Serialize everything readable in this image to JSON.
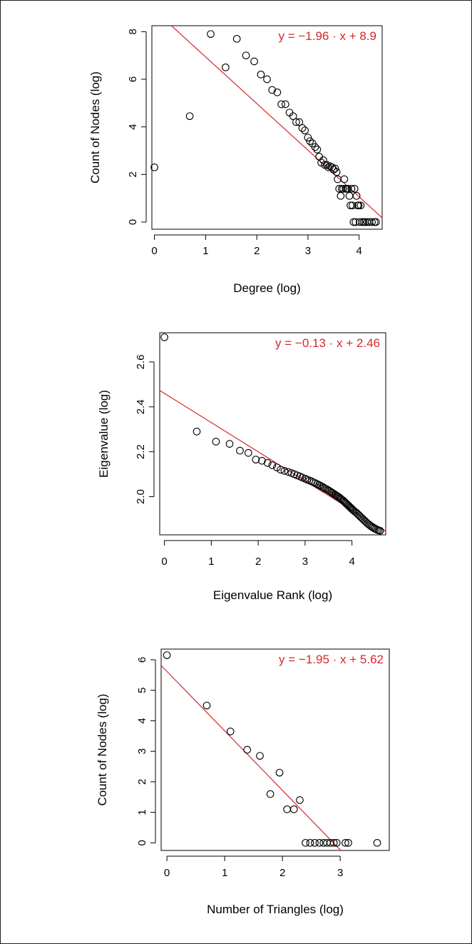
{
  "colors": {
    "points": "#000000",
    "fit_line": "#d62728",
    "equation": "#d62728"
  },
  "chart_data": [
    {
      "type": "scatter",
      "xlabel": "Degree (log)",
      "ylabel": "Count of Nodes (log)",
      "xlim": [
        -0.05,
        4.45
      ],
      "ylim": [
        -0.3,
        8.25
      ],
      "xticks": [
        "0",
        "1",
        "2",
        "3",
        "4"
      ],
      "yticks": [
        "0",
        "2",
        "4",
        "6",
        "8"
      ],
      "equation": "y = −1.96 · x + 8.9",
      "fit": {
        "slope": -1.96,
        "intercept": 8.9
      },
      "points": [
        [
          0,
          2.3
        ],
        [
          0.69,
          4.45
        ],
        [
          1.1,
          7.9
        ],
        [
          1.39,
          6.5
        ],
        [
          1.61,
          7.7
        ],
        [
          1.79,
          7.0
        ],
        [
          1.95,
          6.75
        ],
        [
          2.08,
          6.2
        ],
        [
          2.2,
          6.0
        ],
        [
          2.3,
          5.55
        ],
        [
          2.4,
          5.45
        ],
        [
          2.48,
          4.95
        ],
        [
          2.56,
          4.95
        ],
        [
          2.64,
          4.6
        ],
        [
          2.71,
          4.45
        ],
        [
          2.77,
          4.2
        ],
        [
          2.83,
          4.2
        ],
        [
          2.89,
          3.95
        ],
        [
          2.94,
          3.85
        ],
        [
          3.0,
          3.55
        ],
        [
          3.04,
          3.4
        ],
        [
          3.09,
          3.3
        ],
        [
          3.14,
          3.15
        ],
        [
          3.18,
          3.05
        ],
        [
          3.22,
          2.75
        ],
        [
          3.26,
          2.5
        ],
        [
          3.3,
          2.6
        ],
        [
          3.33,
          2.4
        ],
        [
          3.37,
          2.4
        ],
        [
          3.4,
          2.3
        ],
        [
          3.43,
          2.35
        ],
        [
          3.47,
          2.3
        ],
        [
          3.5,
          2.2
        ],
        [
          3.53,
          2.25
        ],
        [
          3.56,
          2.1
        ],
        [
          3.58,
          1.8
        ],
        [
          3.61,
          1.4
        ],
        [
          3.64,
          1.1
        ],
        [
          3.66,
          1.4
        ],
        [
          3.69,
          1.4
        ],
        [
          3.71,
          1.8
        ],
        [
          3.74,
          1.4
        ],
        [
          3.76,
          1.4
        ],
        [
          3.78,
          1.4
        ],
        [
          3.81,
          1.1
        ],
        [
          3.83,
          0.7
        ],
        [
          3.85,
          1.4
        ],
        [
          3.87,
          0.7
        ],
        [
          3.89,
          0.0
        ],
        [
          3.91,
          1.4
        ],
        [
          3.93,
          0.0
        ],
        [
          3.95,
          1.1
        ],
        [
          3.97,
          0.7
        ],
        [
          3.99,
          0.7
        ],
        [
          4.01,
          0.0
        ],
        [
          4.03,
          0.7
        ],
        [
          4.06,
          0.0
        ],
        [
          4.09,
          0.0
        ],
        [
          4.12,
          0.0
        ],
        [
          4.16,
          0.0
        ],
        [
          4.2,
          0.0
        ],
        [
          4.25,
          0.0
        ],
        [
          4.3,
          0.0
        ],
        [
          4.33,
          0.0
        ]
      ]
    },
    {
      "type": "scatter",
      "xlabel": "Eigenvalue Rank (log)",
      "ylabel": "Eigenvalue (log)",
      "xlim": [
        -0.1,
        4.72
      ],
      "ylim": [
        1.83,
        2.73
      ],
      "xticks": [
        "0",
        "1",
        "2",
        "3",
        "4"
      ],
      "yticks": [
        "2.0",
        "2.2",
        "2.4",
        "2.6"
      ],
      "equation": "y = −0.13 · x + 2.46",
      "fit": {
        "slope": -0.13,
        "intercept": 2.46
      },
      "points": [
        [
          0,
          2.71
        ],
        [
          0.69,
          2.29
        ],
        [
          1.1,
          2.245
        ],
        [
          1.39,
          2.235
        ],
        [
          1.61,
          2.205
        ],
        [
          1.79,
          2.195
        ],
        [
          1.95,
          2.165
        ],
        [
          2.08,
          2.16
        ],
        [
          2.2,
          2.15
        ],
        [
          2.3,
          2.14
        ],
        [
          2.4,
          2.13
        ],
        [
          2.48,
          2.12
        ],
        [
          2.56,
          2.115
        ],
        [
          2.64,
          2.11
        ],
        [
          2.71,
          2.105
        ],
        [
          2.77,
          2.1
        ],
        [
          2.83,
          2.095
        ],
        [
          2.89,
          2.09
        ],
        [
          2.94,
          2.085
        ],
        [
          3.0,
          2.08
        ],
        [
          3.04,
          2.076
        ],
        [
          3.09,
          2.072
        ],
        [
          3.14,
          2.068
        ],
        [
          3.18,
          2.064
        ],
        [
          3.22,
          2.06
        ],
        [
          3.26,
          2.056
        ],
        [
          3.3,
          2.052
        ],
        [
          3.33,
          2.048
        ],
        [
          3.37,
          2.044
        ],
        [
          3.4,
          2.04
        ],
        [
          3.43,
          2.036
        ],
        [
          3.47,
          2.032
        ],
        [
          3.5,
          2.028
        ],
        [
          3.53,
          2.024
        ],
        [
          3.56,
          2.02
        ],
        [
          3.58,
          2.017
        ],
        [
          3.61,
          2.013
        ],
        [
          3.64,
          2.009
        ],
        [
          3.66,
          2.006
        ],
        [
          3.69,
          2.002
        ],
        [
          3.71,
          1.999
        ],
        [
          3.74,
          1.995
        ],
        [
          3.76,
          1.991
        ],
        [
          3.78,
          1.987
        ],
        [
          3.81,
          1.983
        ],
        [
          3.83,
          1.979
        ],
        [
          3.85,
          1.975
        ],
        [
          3.87,
          1.971
        ],
        [
          3.89,
          1.967
        ],
        [
          3.91,
          1.963
        ],
        [
          3.93,
          1.959
        ],
        [
          3.95,
          1.955
        ],
        [
          3.97,
          1.951
        ],
        [
          3.99,
          1.947
        ],
        [
          4.01,
          1.943
        ],
        [
          4.03,
          1.939
        ],
        [
          4.06,
          1.934
        ],
        [
          4.09,
          1.929
        ],
        [
          4.12,
          1.923
        ],
        [
          4.15,
          1.917
        ],
        [
          4.18,
          1.911
        ],
        [
          4.21,
          1.905
        ],
        [
          4.24,
          1.899
        ],
        [
          4.27,
          1.893
        ],
        [
          4.3,
          1.887
        ],
        [
          4.33,
          1.881
        ],
        [
          4.36,
          1.876
        ],
        [
          4.39,
          1.871
        ],
        [
          4.42,
          1.866
        ],
        [
          4.45,
          1.862
        ],
        [
          4.48,
          1.858
        ],
        [
          4.51,
          1.855
        ],
        [
          4.54,
          1.852
        ],
        [
          4.57,
          1.85
        ],
        [
          4.6,
          1.848
        ]
      ]
    },
    {
      "type": "scatter",
      "xlabel": "Number of Triangles (log)",
      "ylabel": "Count of Nodes (log)",
      "xlim": [
        -0.1,
        3.85
      ],
      "ylim": [
        -0.25,
        6.35
      ],
      "xticks": [
        "0",
        "1",
        "2",
        "3"
      ],
      "yticks": [
        "0",
        "1",
        "2",
        "3",
        "4",
        "5",
        "6"
      ],
      "equation": "y = −1.95 · x + 5.62",
      "fit": {
        "slope": -1.95,
        "intercept": 5.62
      },
      "points": [
        [
          0,
          6.15
        ],
        [
          0.69,
          4.5
        ],
        [
          1.1,
          3.65
        ],
        [
          1.39,
          3.05
        ],
        [
          1.61,
          2.85
        ],
        [
          1.79,
          1.6
        ],
        [
          1.95,
          2.3
        ],
        [
          2.08,
          1.1
        ],
        [
          2.2,
          1.1
        ],
        [
          2.3,
          1.4
        ],
        [
          2.4,
          0.0
        ],
        [
          2.48,
          0.0
        ],
        [
          2.56,
          0.0
        ],
        [
          2.64,
          0.0
        ],
        [
          2.71,
          0.0
        ],
        [
          2.77,
          0.0
        ],
        [
          2.83,
          0.0
        ],
        [
          2.89,
          0.0
        ],
        [
          2.94,
          0.0
        ],
        [
          3.09,
          0.0
        ],
        [
          3.14,
          0.0
        ],
        [
          3.64,
          0.0
        ]
      ]
    }
  ]
}
